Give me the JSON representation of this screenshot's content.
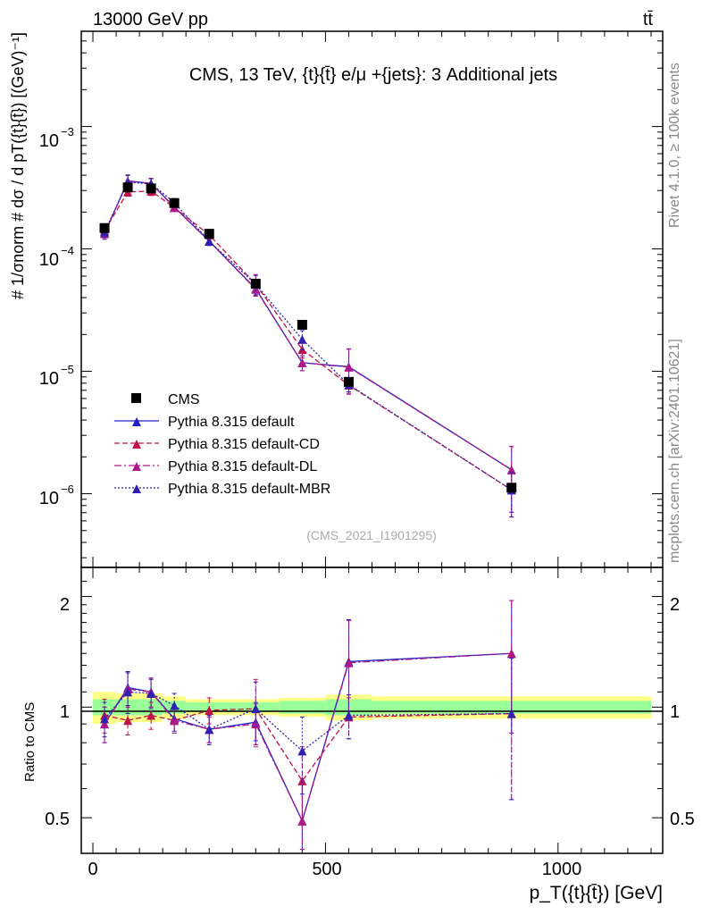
{
  "header": {
    "energy_label": "13000 GeV pp",
    "process_label": "tt̄",
    "title": "CMS, 13 TeV, {t}{t̄} e/μ +{jets}: 3 Additional jets",
    "analysis_id": "(CMS_2021_I1901295)",
    "side_label_top": "Rivet 4.1.0, ≥ 100k events",
    "side_label_bottom": "mcplots.cern.ch [arXiv:2401.10621]"
  },
  "axes": {
    "main_ylabel": "#  1/σnorm  # dσ / d pT({t}{t̄}) [(GeV)⁻¹]",
    "ratio_ylabel": "Ratio to CMS",
    "xlabel": "p_T({t}{t̄}) [GeV]",
    "x_ticks": [
      "0",
      "500",
      "1000"
    ],
    "main_y_ticks": [
      {
        "base": "10",
        "exp": "−6",
        "value": 1e-06
      },
      {
        "base": "10",
        "exp": "−5",
        "value": 1e-05
      },
      {
        "base": "10",
        "exp": "−4",
        "value": 0.0001
      },
      {
        "base": "10",
        "exp": "−3",
        "value": 0.001
      }
    ],
    "ratio_y_ticks": [
      "0.5",
      "1",
      "2"
    ]
  },
  "legend": {
    "items": [
      {
        "label": "CMS",
        "key": "cms"
      },
      {
        "label": "Pythia 8.315 default",
        "key": "default"
      },
      {
        "label": "Pythia 8.315 default-CD",
        "key": "cd"
      },
      {
        "label": "Pythia 8.315 default-DL",
        "key": "dl"
      },
      {
        "label": "Pythia 8.315 default-MBR",
        "key": "mbr"
      }
    ]
  },
  "colors": {
    "cms": "#000000",
    "default": "#2020c8",
    "cd": "#c01048",
    "dl": "#b01888",
    "mbr": "#3020b0",
    "band_inner": "#99ff99",
    "band_outer": "#ffff88"
  },
  "chart_data": {
    "type": "line",
    "xlim": [
      -25,
      1225
    ],
    "main_ylim": [
      2.5e-07,
      0.006
    ],
    "ratio_ylim": [
      0.4,
      2.4
    ],
    "bins": [
      {
        "lo": 0,
        "hi": 50
      },
      {
        "lo": 50,
        "hi": 100
      },
      {
        "lo": 100,
        "hi": 150
      },
      {
        "lo": 150,
        "hi": 200
      },
      {
        "lo": 200,
        "hi": 300
      },
      {
        "lo": 300,
        "hi": 400
      },
      {
        "lo": 400,
        "hi": 500
      },
      {
        "lo": 500,
        "hi": 600
      },
      {
        "lo": 600,
        "hi": 1200
      }
    ],
    "x": [
      25,
      75,
      125,
      175,
      250,
      350,
      450,
      550,
      900
    ],
    "cms": [
      0.000148,
      0.000318,
      0.000312,
      0.000237,
      0.000133,
      5.2e-05,
      2.4e-05,
      8.2e-06,
      1.12e-06
    ],
    "band_inner_rel": [
      0.05,
      0.05,
      0.05,
      0.04,
      0.03,
      0.03,
      0.04,
      0.05,
      0.04
    ],
    "band_outer_rel": [
      0.1,
      0.09,
      0.09,
      0.07,
      0.05,
      0.05,
      0.06,
      0.08,
      0.07
    ],
    "series": [
      {
        "name": "Pythia 8.315 default",
        "key": "default",
        "dash": "",
        "ratio": [
          0.9,
          1.13,
          1.1,
          0.93,
          0.87,
          0.91,
          0.49,
          1.33,
          1.4
        ],
        "err": [
          0.1,
          0.12,
          0.1,
          0.07,
          0.07,
          0.12,
          0.14,
          0.4,
          0.55
        ]
      },
      {
        "name": "Pythia 8.315 default-CD",
        "key": "cd",
        "dash": "6,3",
        "ratio": [
          0.95,
          0.92,
          0.95,
          0.92,
          0.98,
          0.99,
          0.63,
          0.94,
          0.96
        ],
        "err": [
          0.1,
          0.08,
          0.08,
          0.07,
          0.08,
          0.2,
          0.15,
          0.12,
          0.4
        ]
      },
      {
        "name": "Pythia 8.315 default-DL",
        "key": "dl",
        "dash": "8,3,2,3",
        "ratio": [
          0.9,
          1.12,
          1.1,
          0.92,
          0.87,
          0.9,
          0.49,
          1.32,
          1.4
        ],
        "err": [
          0.1,
          0.12,
          0.1,
          0.07,
          0.07,
          0.12,
          0.14,
          0.4,
          0.55
        ]
      },
      {
        "name": "Pythia 8.315 default-MBR",
        "key": "mbr",
        "dash": "2,2",
        "ratio": [
          0.93,
          1.1,
          1.09,
          1.01,
          0.87,
          0.99,
          0.76,
          0.95,
          0.96
        ],
        "err": [
          0.1,
          0.14,
          0.1,
          0.08,
          0.08,
          0.18,
          0.18,
          0.13,
          0.4
        ]
      }
    ]
  }
}
